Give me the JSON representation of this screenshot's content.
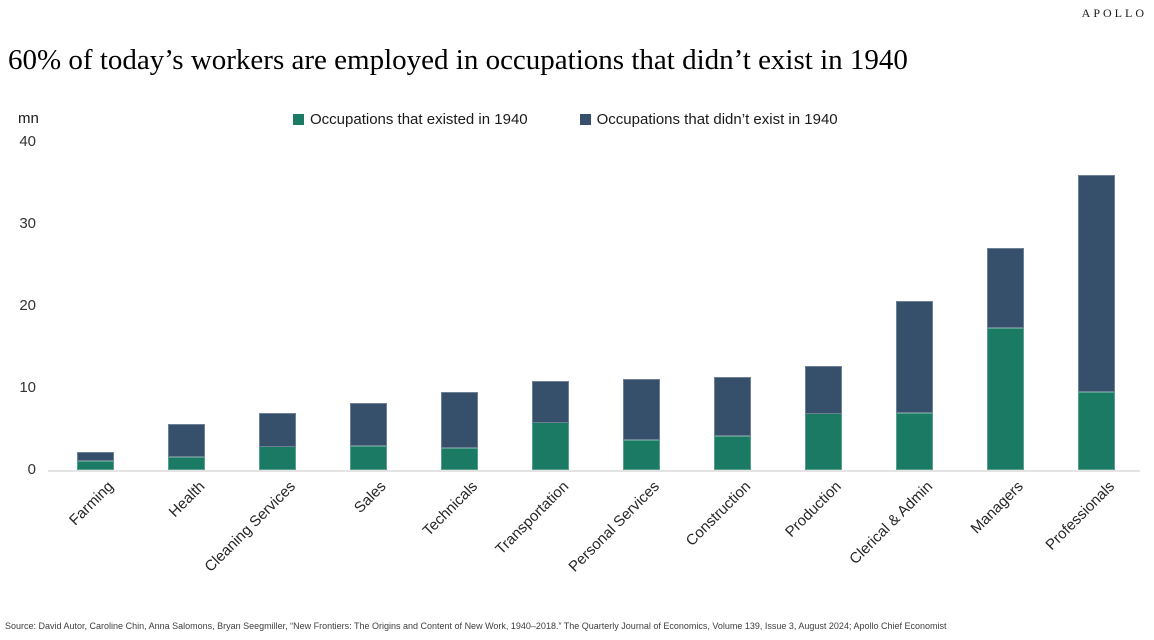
{
  "brand": {
    "logo": "APOLLO"
  },
  "title": "60% of today’s workers are employed in occupations that didn’t exist in 1940",
  "axis_unit_label": "mn",
  "legend": [
    {
      "label": "Occupations that existed in 1940",
      "color": "#1B7A63"
    },
    {
      "label": "Occupations that didn’t exist in 1940",
      "color": "#36506B"
    }
  ],
  "source": "Source: David Autor, Caroline Chin, Anna Salomons, Bryan Seegmiller, “New Frontiers: The Origins and Content of New Work, 1940–2018.” The Quarterly Journal of Economics, Volume 139, Issue 3, August 2024; Apollo Chief Economist",
  "chart_data": {
    "type": "bar",
    "stacked": true,
    "title": "60% of today’s workers are employed in occupations that didn’t exist in 1940",
    "ylabel": "mn",
    "ylim": [
      0,
      40
    ],
    "yticks": [
      0,
      10,
      20,
      30,
      40
    ],
    "grid": false,
    "legend_position": "top",
    "categories": [
      "Farming",
      "Health",
      "Cleaning Services",
      "Sales",
      "Technicals",
      "Transportation",
      "Personal Services",
      "Construction",
      "Production",
      "Clerical & Admin",
      "Managers",
      "Professionals"
    ],
    "series": [
      {
        "name": "Occupations that existed in 1940",
        "color": "#1B7A63",
        "values": [
          1.1,
          1.6,
          2.9,
          2.9,
          2.7,
          5.8,
          3.6,
          4.2,
          6.9,
          7.0,
          17.3,
          9.5
        ]
      },
      {
        "name": "Occupations that didn’t exist in 1940",
        "color": "#36506B",
        "values": [
          1.1,
          4.0,
          4.1,
          5.3,
          6.8,
          5.1,
          7.5,
          7.2,
          5.8,
          13.6,
          9.8,
          26.5
        ]
      }
    ]
  }
}
